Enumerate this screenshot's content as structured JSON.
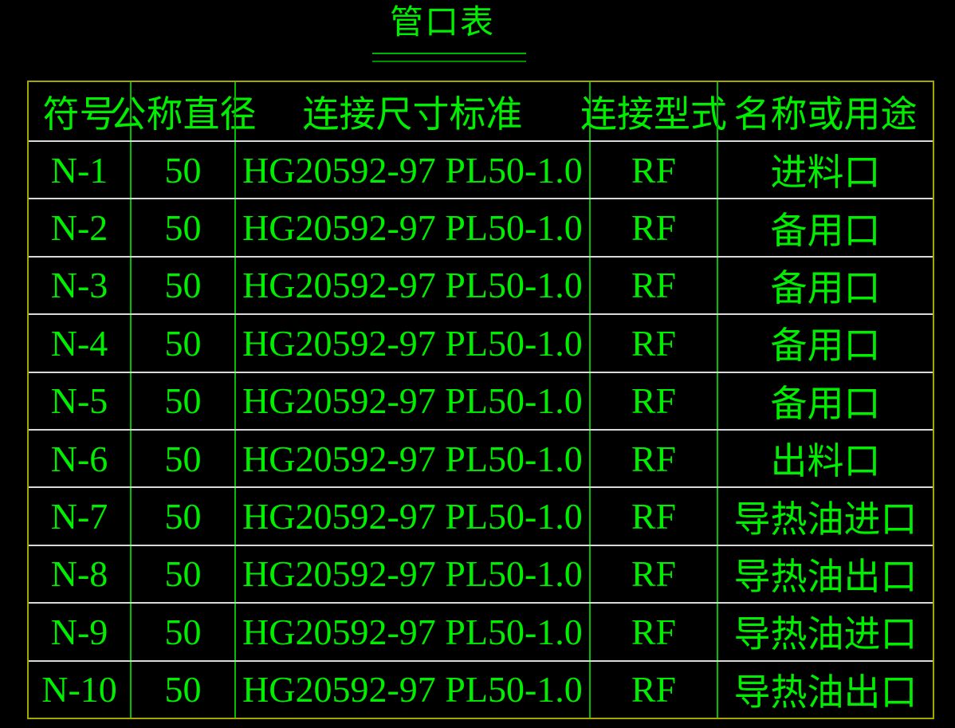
{
  "title": {
    "text": "管口表"
  },
  "table": {
    "headers": [
      "符号",
      "公称直径",
      "连接尺寸标准",
      "连接型式",
      "名称或用途"
    ],
    "rows": [
      [
        "N-1",
        "50",
        "HG20592-97 PL50-1.0",
        "RF",
        "进料口"
      ],
      [
        "N-2",
        "50",
        "HG20592-97 PL50-1.0",
        "RF",
        "备用口"
      ],
      [
        "N-3",
        "50",
        "HG20592-97 PL50-1.0",
        "RF",
        "备用口"
      ],
      [
        "N-4",
        "50",
        "HG20592-97 PL50-1.0",
        "RF",
        "备用口"
      ],
      [
        "N-5",
        "50",
        "HG20592-97 PL50-1.0",
        "RF",
        "备用口"
      ],
      [
        "N-6",
        "50",
        "HG20592-97 PL50-1.0",
        "RF",
        "出料口"
      ],
      [
        "N-7",
        "50",
        "HG20592-97 PL50-1.0",
        "RF",
        "导热油进口"
      ],
      [
        "N-8",
        "50",
        "HG20592-97 PL50-1.0",
        "RF",
        "导热油出口"
      ],
      [
        "N-9",
        "50",
        "HG20592-97 PL50-1.0",
        "RF",
        "导热油进口"
      ],
      [
        "N-10",
        "50",
        "HG20592-97 PL50-1.0",
        "RF",
        "导热油出口"
      ]
    ]
  },
  "colors": {
    "background": "#000000",
    "text_green": "#00ee00",
    "grid_line_green": "#00c000",
    "underline_green_top": "#00b400",
    "underline_green_bottom": "#008f00",
    "outer_border_yellow": "#a6a600",
    "row_line_gray": "#d9d9d9"
  }
}
